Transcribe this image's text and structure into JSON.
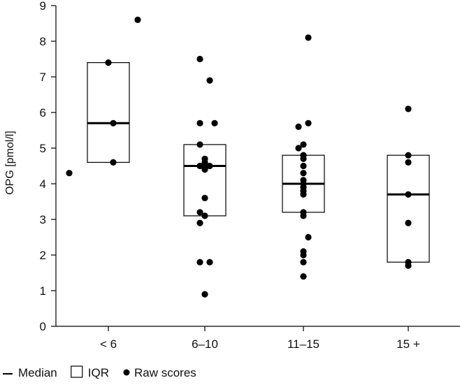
{
  "chart_data": {
    "type": "box",
    "ylabel": "OPG [pmol/l]",
    "xlabel": "",
    "ylim": [
      0,
      9
    ],
    "yticks": [
      0,
      1,
      2,
      3,
      4,
      5,
      6,
      7,
      8,
      9
    ],
    "categories": [
      "< 6",
      "6–10",
      "11–15",
      "15 +"
    ],
    "boxes": [
      {
        "category": "< 6",
        "q1": 4.6,
        "median": 5.7,
        "q3": 7.4
      },
      {
        "category": "6–10",
        "q1": 3.1,
        "median": 4.5,
        "q3": 5.1
      },
      {
        "category": "11–15",
        "q1": 3.2,
        "median": 4.0,
        "q3": 4.8
      },
      {
        "category": "15 +",
        "q1": 1.8,
        "median": 3.7,
        "q3": 4.8
      }
    ],
    "points": [
      [
        {
          "dx": 0.3,
          "y": 8.6
        },
        {
          "dx": 0.0,
          "y": 7.4
        },
        {
          "dx": 0.05,
          "y": 5.7
        },
        {
          "dx": 0.05,
          "y": 4.6
        },
        {
          "dx": -0.4,
          "y": 4.3
        }
      ],
      [
        {
          "dx": -0.05,
          "y": 7.5
        },
        {
          "dx": 0.05,
          "y": 6.9
        },
        {
          "dx": -0.05,
          "y": 5.7
        },
        {
          "dx": 0.1,
          "y": 5.7
        },
        {
          "dx": -0.05,
          "y": 5.1
        },
        {
          "dx": -0.05,
          "y": 4.5
        },
        {
          "dx": 0.0,
          "y": 4.6
        },
        {
          "dx": 0.0,
          "y": 4.7
        },
        {
          "dx": 0.05,
          "y": 4.5
        },
        {
          "dx": 0.0,
          "y": 4.4
        },
        {
          "dx": 0.0,
          "y": 3.6
        },
        {
          "dx": -0.05,
          "y": 3.2
        },
        {
          "dx": 0.0,
          "y": 3.1
        },
        {
          "dx": -0.05,
          "y": 2.9
        },
        {
          "dx": -0.05,
          "y": 1.8
        },
        {
          "dx": 0.05,
          "y": 1.8
        },
        {
          "dx": 0.0,
          "y": 0.9
        }
      ],
      [
        {
          "dx": 0.05,
          "y": 8.1
        },
        {
          "dx": -0.05,
          "y": 5.6
        },
        {
          "dx": 0.05,
          "y": 5.7
        },
        {
          "dx": 0.0,
          "y": 5.1
        },
        {
          "dx": -0.05,
          "y": 5.0
        },
        {
          "dx": 0.0,
          "y": 4.8
        },
        {
          "dx": 0.0,
          "y": 4.8
        },
        {
          "dx": 0.0,
          "y": 4.7
        },
        {
          "dx": 0.0,
          "y": 4.5
        },
        {
          "dx": 0.0,
          "y": 4.3
        },
        {
          "dx": 0.0,
          "y": 4.1
        },
        {
          "dx": 0.0,
          "y": 4.0
        },
        {
          "dx": 0.0,
          "y": 3.9
        },
        {
          "dx": 0.0,
          "y": 3.8
        },
        {
          "dx": 0.0,
          "y": 3.7
        },
        {
          "dx": 0.0,
          "y": 3.2
        },
        {
          "dx": 0.0,
          "y": 3.1
        },
        {
          "dx": 0.05,
          "y": 2.5
        },
        {
          "dx": 0.0,
          "y": 2.1
        },
        {
          "dx": 0.0,
          "y": 2.0
        },
        {
          "dx": 0.0,
          "y": 1.8
        },
        {
          "dx": 0.0,
          "y": 1.4
        }
      ],
      [
        {
          "dx": 0.0,
          "y": 6.1
        },
        {
          "dx": 0.0,
          "y": 4.8
        },
        {
          "dx": 0.0,
          "y": 4.6
        },
        {
          "dx": 0.0,
          "y": 3.7
        },
        {
          "dx": 0.0,
          "y": 2.9
        },
        {
          "dx": 0.0,
          "y": 1.8
        },
        {
          "dx": 0.0,
          "y": 1.7
        }
      ]
    ],
    "legend": [
      {
        "symbol": "line",
        "label": "Median"
      },
      {
        "symbol": "box",
        "label": "IQR"
      },
      {
        "symbol": "dot",
        "label": "Raw scores"
      }
    ],
    "legend_position": "bottom-left",
    "grid": false,
    "colors": {
      "ink": "#000000",
      "background": "#ffffff"
    }
  }
}
